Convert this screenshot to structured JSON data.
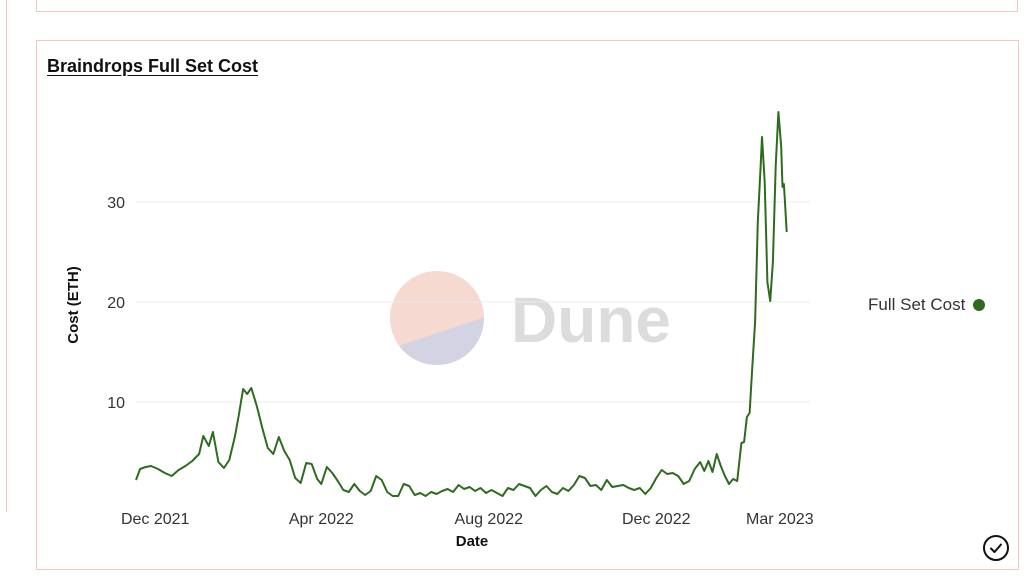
{
  "chart_data": {
    "type": "line",
    "title": "Braindrops Full Set Cost",
    "xlabel": "Date",
    "ylabel": "Cost (ETH)",
    "x_range": [
      "2021-11-17",
      "2023-03-23"
    ],
    "ylim": [
      0,
      40
    ],
    "y_ticks": [
      10,
      20,
      30
    ],
    "x_ticks": [
      {
        "date": "2021-12-01",
        "label": "Dec 2021"
      },
      {
        "date": "2022-04-01",
        "label": "Apr 2022"
      },
      {
        "date": "2022-08-01",
        "label": "Aug 2022"
      },
      {
        "date": "2022-12-01",
        "label": "Dec 2022"
      },
      {
        "date": "2023-03-01",
        "label": "Mar 2023"
      }
    ],
    "grid": "horizontal",
    "legend_position": "right",
    "series": [
      {
        "name": "Full Set Cost",
        "color": "#2e6b1f",
        "points": [
          [
            "2021-11-17",
            2.2
          ],
          [
            "2021-11-20",
            3.3
          ],
          [
            "2021-11-24",
            3.5
          ],
          [
            "2021-11-28",
            3.6
          ],
          [
            "2021-12-03",
            3.3
          ],
          [
            "2021-12-08",
            2.9
          ],
          [
            "2021-12-13",
            2.6
          ],
          [
            "2021-12-18",
            3.2
          ],
          [
            "2021-12-23",
            3.6
          ],
          [
            "2021-12-28",
            4.1
          ],
          [
            "2022-01-02",
            4.8
          ],
          [
            "2022-01-05",
            6.6
          ],
          [
            "2022-01-09",
            5.6
          ],
          [
            "2022-01-12",
            7.0
          ],
          [
            "2022-01-16",
            4.0
          ],
          [
            "2022-01-20",
            3.4
          ],
          [
            "2022-01-24",
            4.2
          ],
          [
            "2022-01-28",
            6.5
          ],
          [
            "2022-01-31",
            8.8
          ],
          [
            "2022-02-03",
            11.3
          ],
          [
            "2022-02-06",
            10.8
          ],
          [
            "2022-02-09",
            11.4
          ],
          [
            "2022-02-13",
            9.6
          ],
          [
            "2022-02-17",
            7.4
          ],
          [
            "2022-02-21",
            5.4
          ],
          [
            "2022-02-25",
            4.8
          ],
          [
            "2022-03-01",
            6.5
          ],
          [
            "2022-03-05",
            5.1
          ],
          [
            "2022-03-09",
            4.2
          ],
          [
            "2022-03-13",
            2.4
          ],
          [
            "2022-03-17",
            1.9
          ],
          [
            "2022-03-21",
            3.9
          ],
          [
            "2022-03-25",
            3.8
          ],
          [
            "2022-03-29",
            2.3
          ],
          [
            "2022-04-01",
            1.8
          ],
          [
            "2022-04-05",
            3.5
          ],
          [
            "2022-04-09",
            2.9
          ],
          [
            "2022-04-13",
            2.1
          ],
          [
            "2022-04-17",
            1.2
          ],
          [
            "2022-04-21",
            1.0
          ],
          [
            "2022-04-25",
            1.8
          ],
          [
            "2022-04-29",
            1.1
          ],
          [
            "2022-05-03",
            0.7
          ],
          [
            "2022-05-07",
            1.1
          ],
          [
            "2022-05-11",
            2.6
          ],
          [
            "2022-05-15",
            2.2
          ],
          [
            "2022-05-19",
            1.0
          ],
          [
            "2022-05-23",
            0.6
          ],
          [
            "2022-05-27",
            0.6
          ],
          [
            "2022-05-31",
            1.8
          ],
          [
            "2022-06-04",
            1.6
          ],
          [
            "2022-06-08",
            0.7
          ],
          [
            "2022-06-12",
            0.9
          ],
          [
            "2022-06-16",
            0.6
          ],
          [
            "2022-06-20",
            1.0
          ],
          [
            "2022-06-24",
            0.8
          ],
          [
            "2022-06-28",
            1.1
          ],
          [
            "2022-07-02",
            1.3
          ],
          [
            "2022-07-06",
            1.0
          ],
          [
            "2022-07-10",
            1.7
          ],
          [
            "2022-07-14",
            1.3
          ],
          [
            "2022-07-18",
            1.5
          ],
          [
            "2022-07-22",
            1.1
          ],
          [
            "2022-07-26",
            1.4
          ],
          [
            "2022-07-30",
            0.9
          ],
          [
            "2022-08-03",
            1.2
          ],
          [
            "2022-08-07",
            0.9
          ],
          [
            "2022-08-11",
            0.6
          ],
          [
            "2022-08-15",
            1.4
          ],
          [
            "2022-08-19",
            1.2
          ],
          [
            "2022-08-23",
            1.8
          ],
          [
            "2022-08-27",
            1.6
          ],
          [
            "2022-08-31",
            1.4
          ],
          [
            "2022-09-04",
            0.6
          ],
          [
            "2022-09-08",
            1.2
          ],
          [
            "2022-09-12",
            1.6
          ],
          [
            "2022-09-16",
            1.0
          ],
          [
            "2022-09-20",
            0.8
          ],
          [
            "2022-09-24",
            1.4
          ],
          [
            "2022-09-28",
            1.1
          ],
          [
            "2022-10-02",
            1.7
          ],
          [
            "2022-10-06",
            2.6
          ],
          [
            "2022-10-10",
            2.4
          ],
          [
            "2022-10-14",
            1.6
          ],
          [
            "2022-10-18",
            1.7
          ],
          [
            "2022-10-22",
            1.2
          ],
          [
            "2022-10-26",
            2.2
          ],
          [
            "2022-10-30",
            1.5
          ],
          [
            "2022-11-03",
            1.6
          ],
          [
            "2022-11-07",
            1.7
          ],
          [
            "2022-11-11",
            1.4
          ],
          [
            "2022-11-15",
            1.2
          ],
          [
            "2022-11-19",
            1.4
          ],
          [
            "2022-11-23",
            0.8
          ],
          [
            "2022-11-27",
            1.4
          ],
          [
            "2022-12-01",
            2.4
          ],
          [
            "2022-12-05",
            3.2
          ],
          [
            "2022-12-09",
            2.8
          ],
          [
            "2022-12-13",
            2.9
          ],
          [
            "2022-12-17",
            2.6
          ],
          [
            "2022-12-21",
            1.8
          ],
          [
            "2022-12-25",
            2.1
          ],
          [
            "2022-12-29",
            3.3
          ],
          [
            "2023-01-02",
            4.0
          ],
          [
            "2023-01-05",
            3.1
          ],
          [
            "2023-01-08",
            4.1
          ],
          [
            "2023-01-11",
            3.0
          ],
          [
            "2023-01-14",
            4.8
          ],
          [
            "2023-01-17",
            3.6
          ],
          [
            "2023-01-20",
            2.6
          ],
          [
            "2023-01-23",
            1.8
          ],
          [
            "2023-01-26",
            2.3
          ],
          [
            "2023-01-29",
            2.1
          ],
          [
            "2023-02-01",
            5.9
          ],
          [
            "2023-02-03",
            6.0
          ],
          [
            "2023-02-05",
            8.5
          ],
          [
            "2023-02-07",
            8.9
          ],
          [
            "2023-02-09",
            13.5
          ],
          [
            "2023-02-11",
            18.0
          ],
          [
            "2023-02-13",
            28.0
          ],
          [
            "2023-02-15",
            33.5
          ],
          [
            "2023-02-16",
            36.5
          ],
          [
            "2023-02-18",
            32.0
          ],
          [
            "2023-02-20",
            22.0
          ],
          [
            "2023-02-22",
            20.1
          ],
          [
            "2023-02-24",
            24.0
          ],
          [
            "2023-02-26",
            33.6
          ],
          [
            "2023-02-28",
            39.0
          ],
          [
            "2023-03-02",
            35.5
          ],
          [
            "2023-03-03",
            31.5
          ],
          [
            "2023-03-04",
            31.8
          ],
          [
            "2023-03-06",
            27.0
          ]
        ]
      }
    ]
  },
  "watermark": {
    "text": "Dune",
    "colors": {
      "top": "#f6d9d1",
      "bottom": "#d4d3e3"
    }
  },
  "actions": {
    "check_icon": "check-circle-icon"
  }
}
